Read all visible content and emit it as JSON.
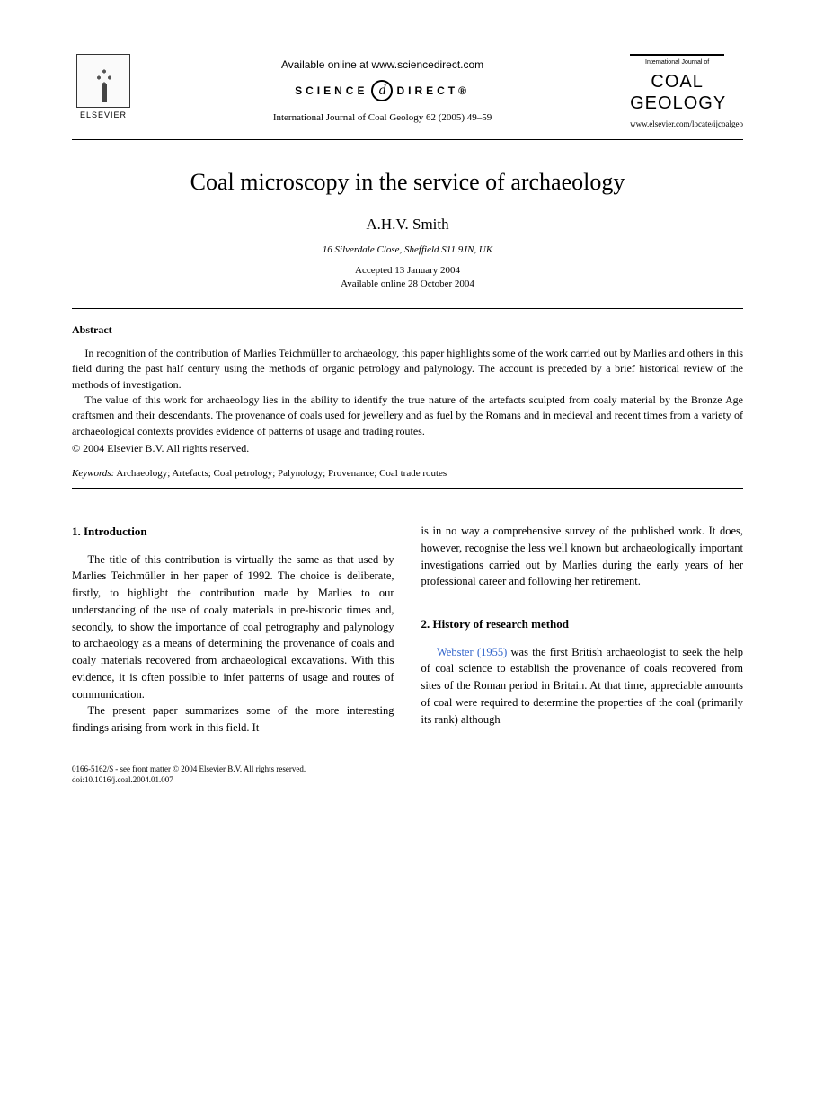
{
  "header": {
    "publisher_name": "ELSEVIER",
    "available_text": "Available online at www.sciencedirect.com",
    "science_label_left": "SCIENCE",
    "sd_icon_glyph": "d",
    "science_label_right": "DIRECT®",
    "citation": "International Journal of Coal Geology 62 (2005) 49–59",
    "journal_small_label": "International Journal of",
    "journal_line1": "COAL",
    "journal_line2": "GEOLOGY",
    "journal_url": "www.elsevier.com/locate/ijcoalgeo"
  },
  "article": {
    "title": "Coal microscopy in the service of archaeology",
    "author": "A.H.V. Smith",
    "affiliation": "16 Silverdale Close, Sheffield S11 9JN, UK",
    "accepted": "Accepted 13 January 2004",
    "available_online": "Available online 28 October 2004"
  },
  "abstract": {
    "heading": "Abstract",
    "p1": "In recognition of the contribution of Marlies Teichmüller to archaeology, this paper highlights some of the work carried out by Marlies and others in this field during the past half century using the methods of organic petrology and palynology. The account is preceded by a brief historical review of the methods of investigation.",
    "p2": "The value of this work for archaeology lies in the ability to identify the true nature of the artefacts sculpted from coaly material by the Bronze Age craftsmen and their descendants. The provenance of coals used for jewellery and as fuel by the Romans and in medieval and recent times from a variety of archaeological contexts provides evidence of patterns of usage and trading routes.",
    "copyright": "© 2004 Elsevier B.V. All rights reserved."
  },
  "keywords": {
    "label": "Keywords:",
    "list": "Archaeology; Artefacts; Coal petrology; Palynology; Provenance; Coal trade routes"
  },
  "body": {
    "sec1_heading": "1. Introduction",
    "sec1_p1": "The title of this contribution is virtually the same as that used by Marlies Teichmüller in her paper of 1992. The choice is deliberate, firstly, to highlight the contribution made by Marlies to our understanding of the use of coaly materials in pre-historic times and, secondly, to show the importance of coal petrography and palynology to archaeology as a means of determining the provenance of coals and coaly materials recovered from archaeological excavations. With this evidence, it is often possible to infer patterns of usage and routes of communication.",
    "sec1_p2": "The present paper summarizes some of the more interesting findings arising from work in this field. It",
    "sec1_p3": "is in no way a comprehensive survey of the published work. It does, however, recognise the less well known but archaeologically important investigations carried out by Marlies during the early years of her professional career and following her retirement.",
    "sec2_heading": "2. History of research method",
    "sec2_ref": "Webster (1955)",
    "sec2_p1_rest": " was the first British archaeologist to seek the help of coal science to establish the provenance of coals recovered from sites of the Roman period in Britain. At that time, appreciable amounts of coal were required to determine the properties of the coal (primarily its rank) although"
  },
  "footer": {
    "line1": "0166-5162/$ - see front matter © 2004 Elsevier B.V. All rights reserved.",
    "line2": "doi:10.1016/j.coal.2004.01.007"
  },
  "colors": {
    "text": "#000000",
    "link": "#3366cc",
    "background": "#ffffff"
  }
}
